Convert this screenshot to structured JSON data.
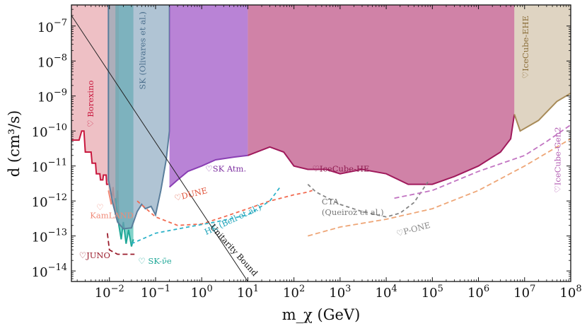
{
  "chart_data": {
    "type": "area",
    "xscale": "log",
    "yscale": "log",
    "xlim": [
      0.0015,
      100000000
    ],
    "ylim": [
      5e-15,
      4e-07
    ],
    "xlabel": "m_χ (GeV)",
    "ylabel": "d (cm³/s)",
    "xticks": [
      {
        "value": 0.01,
        "base": "10",
        "exp": "−2"
      },
      {
        "value": 0.1,
        "base": "10",
        "exp": "−1"
      },
      {
        "value": 1,
        "base": "10",
        "exp": "0"
      },
      {
        "value": 10,
        "base": "10",
        "exp": "1"
      },
      {
        "value": 100,
        "base": "10",
        "exp": "2"
      },
      {
        "value": 1000,
        "base": "10",
        "exp": "3"
      },
      {
        "value": 10000,
        "base": "10",
        "exp": "4"
      },
      {
        "value": 100000,
        "base": "10",
        "exp": "5"
      },
      {
        "value": 1000000,
        "base": "10",
        "exp": "6"
      },
      {
        "value": 10000000,
        "base": "10",
        "exp": "7"
      },
      {
        "value": 100000000,
        "base": "10",
        "exp": "8"
      }
    ],
    "yticks": [
      {
        "value": 1e-14,
        "base": "10",
        "exp": "−14"
      },
      {
        "value": 1e-13,
        "base": "10",
        "exp": "−13"
      },
      {
        "value": 1e-12,
        "base": "10",
        "exp": "−12"
      },
      {
        "value": 1e-11,
        "base": "10",
        "exp": "−11"
      },
      {
        "value": 1e-10,
        "base": "10",
        "exp": "−10"
      },
      {
        "value": 1e-09,
        "base": "10",
        "exp": "−9"
      },
      {
        "value": 1e-08,
        "base": "10",
        "exp": "−8"
      },
      {
        "value": 1e-07,
        "base": "10",
        "exp": "−7"
      }
    ],
    "regions": [
      {
        "name": "Borexino",
        "color": "#d9737f",
        "opacity": 0.45,
        "edge": "#c8183e",
        "boundary": [
          [
            0.0015,
            5.5e-11
          ],
          [
            0.0022,
            5.5e-11
          ],
          [
            0.0025,
            1e-10
          ],
          [
            0.0028,
            1e-10
          ],
          [
            0.003,
            2.5e-11
          ],
          [
            0.004,
            2.5e-11
          ],
          [
            0.0042,
            1.2e-11
          ],
          [
            0.005,
            1.2e-11
          ],
          [
            0.0052,
            6e-12
          ],
          [
            0.0062,
            6e-12
          ],
          [
            0.0064,
            4e-12
          ],
          [
            0.0072,
            4e-12
          ],
          [
            0.0074,
            5.5e-12
          ],
          [
            0.0085,
            5.5e-12
          ],
          [
            0.0087,
            3e-12
          ],
          [
            0.0095,
            3e-12
          ]
        ]
      },
      {
        "name": "KamLAND",
        "color": "#f4a394",
        "opacity": 0.6,
        "edge": "#f08a78",
        "boundary": [
          [
            0.0095,
            2e-12
          ],
          [
            0.011,
            8e-13
          ],
          [
            0.012,
            2.5e-12
          ],
          [
            0.0135,
            4e-13
          ],
          [
            0.015,
            2e-12
          ],
          [
            0.016,
            3e-13
          ]
        ]
      },
      {
        "name": "SK-ν̄e",
        "color": "#2cb5a5",
        "opacity": 0.6,
        "edge": "#20a898",
        "boundary": [
          [
            0.0135,
            1.2e-12
          ],
          [
            0.016,
            2e-13
          ],
          [
            0.018,
            8e-14
          ],
          [
            0.02,
            2.5e-13
          ],
          [
            0.023,
            6e-14
          ],
          [
            0.026,
            1.5e-13
          ],
          [
            0.03,
            5e-14
          ],
          [
            0.033,
            8e-14
          ]
        ]
      },
      {
        "name": "SK (Olivares et al.)",
        "color": "#7b9cb8",
        "opacity": 0.6,
        "edge": "#5a7e9c",
        "boundary": [
          [
            0.0095,
            4e-07
          ],
          [
            0.0095,
            4e-12
          ],
          [
            0.012,
            8e-13
          ],
          [
            0.015,
            2.5e-13
          ],
          [
            0.02,
            1.6e-13
          ],
          [
            0.03,
            1.7e-13
          ],
          [
            0.04,
            5e-13
          ],
          [
            0.05,
            8e-13
          ],
          [
            0.06,
            6e-13
          ],
          [
            0.08,
            7e-13
          ],
          [
            0.1,
            4e-13
          ],
          [
            0.13,
            2e-12
          ],
          [
            0.17,
            1.5e-11
          ],
          [
            0.2,
            1e-10
          ],
          [
            0.2,
            4e-07
          ]
        ]
      },
      {
        "name": "SK Atm.",
        "color": "#9b4fc4",
        "opacity": 0.7,
        "edge": "#8a3fb4",
        "boundary": [
          [
            0.2,
            2.5e-12
          ],
          [
            0.3,
            4e-12
          ],
          [
            0.5,
            7e-12
          ],
          [
            1,
            1e-11
          ],
          [
            2,
            1.5e-11
          ],
          [
            5,
            1.8e-11
          ],
          [
            10,
            2e-11
          ]
        ]
      },
      {
        "name": "IceCube-HE",
        "color": "#b02e6c",
        "opacity": 0.6,
        "edge": "#a01a5c",
        "boundary": [
          [
            10,
            2e-11
          ],
          [
            30,
            3.5e-11
          ],
          [
            60,
            2.5e-11
          ],
          [
            100,
            1e-11
          ],
          [
            200,
            8e-12
          ],
          [
            500,
            8e-12
          ],
          [
            1000,
            6e-12
          ],
          [
            3000,
            8e-12
          ],
          [
            10000,
            6e-12
          ],
          [
            30000,
            3e-12
          ],
          [
            100000,
            3e-12
          ],
          [
            300000,
            5e-12
          ],
          [
            1000000,
            1e-11
          ],
          [
            3000000,
            2.5e-11
          ],
          [
            5000000,
            6e-11
          ],
          [
            6000000,
            3e-10
          ]
        ]
      },
      {
        "name": "IceCube-EHE",
        "color": "#c9b79a",
        "opacity": 0.6,
        "edge": "#a88b58",
        "boundary": [
          [
            6000000,
            3e-10
          ],
          [
            8000000,
            1e-10
          ],
          [
            20000000,
            2e-10
          ],
          [
            50000000,
            7e-10
          ],
          [
            100000000,
            1.2e-09
          ]
        ]
      }
    ],
    "projections": [
      {
        "name": "JUNO",
        "color": "#9a1c2c",
        "dash": [
          7,
          4
        ],
        "points": [
          [
            0.009,
            1.2e-13
          ],
          [
            0.01,
            4e-14
          ],
          [
            0.015,
            3e-14
          ],
          [
            0.035,
            3e-14
          ]
        ]
      },
      {
        "name": "DUNE",
        "color": "#f16a50",
        "dash": [
          5,
          4
        ],
        "points": [
          [
            0.04,
            1e-12
          ],
          [
            0.1,
            3.5e-13
          ],
          [
            0.3,
            2e-13
          ],
          [
            1,
            2.2e-13
          ],
          [
            3,
            3.5e-13
          ],
          [
            10,
            6e-13
          ],
          [
            30,
            1e-12
          ],
          [
            100,
            1.5e-12
          ],
          [
            200,
            1.8e-12
          ],
          [
            250,
            2e-12
          ]
        ]
      },
      {
        "name": "HK (Bell et al.)",
        "color": "#2fb3c9",
        "dash": [
          5,
          4
        ],
        "points": [
          [
            0.03,
            6e-14
          ],
          [
            0.1,
            1.2e-13
          ],
          [
            0.5,
            1.8e-13
          ],
          [
            2,
            2.5e-13
          ],
          [
            10,
            4e-13
          ],
          [
            30,
            1e-12
          ],
          [
            50,
            2.5e-12
          ]
        ]
      },
      {
        "name": "CTA (Queiroz et al.)",
        "color": "#858585",
        "dash": [
          5,
          4
        ],
        "points": [
          [
            200,
            3e-12
          ],
          [
            300,
            1.8e-12
          ],
          [
            1000,
            8e-13
          ],
          [
            3000,
            5e-13
          ],
          [
            10000,
            3.5e-13
          ],
          [
            20000,
            4.5e-13
          ],
          [
            40000,
            9e-13
          ],
          [
            60000,
            2e-12
          ],
          [
            80000,
            3.5e-12
          ]
        ]
      },
      {
        "name": "IceCube-Gen2",
        "color": "#c274c2",
        "dash": [
          7,
          4
        ],
        "points": [
          [
            15000,
            1.2e-12
          ],
          [
            100000,
            2e-12
          ],
          [
            1000000,
            7e-12
          ],
          [
            10000000,
            2e-11
          ],
          [
            30000000,
            5e-11
          ],
          [
            100000000,
            1.5e-10
          ]
        ]
      },
      {
        "name": "P-ONE",
        "color": "#eea677",
        "dash": [
          7,
          4
        ],
        "points": [
          [
            200,
            1e-13
          ],
          [
            1000,
            1.8e-13
          ],
          [
            10000,
            3e-13
          ],
          [
            100000,
            6e-13
          ],
          [
            1000000,
            2e-12
          ],
          [
            10000000,
            1e-11
          ],
          [
            100000000,
            6e-11
          ]
        ]
      }
    ],
    "unitarity": {
      "name": "Unitarity Bound",
      "color": "#222222",
      "points": [
        [
          0.0015,
          2e-07
        ],
        [
          10,
          5e-15
        ]
      ]
    },
    "labels": [
      {
        "key": "borexino",
        "text": "♡ Borexino",
        "x": 0.0045,
        "y": 6e-10,
        "rotate": -90,
        "color": "#c8183e"
      },
      {
        "key": "sk_olivares",
        "text": "SK (Olivares et al.)",
        "x": 0.06,
        "y": 2e-08,
        "rotate": -90,
        "color": "#4a6e8c"
      },
      {
        "key": "sk_atm",
        "text": "♡SK Atm.",
        "x": 1.2,
        "y": 7e-12,
        "rotate": 0,
        "color": "#7d2fa0"
      },
      {
        "key": "icecube_he",
        "text": "♡IceCube-HE",
        "x": 250,
        "y": 7e-12,
        "rotate": 0,
        "color": "#8e1a4f"
      },
      {
        "key": "icecube_ehe",
        "text": "♡IceCube-EHE",
        "x": 12000000,
        "y": 2.5e-08,
        "rotate": -90,
        "color": "#8a6d37"
      },
      {
        "key": "dune",
        "text": "♡DUNE",
        "x": 0.6,
        "y": 1.3e-12,
        "rotate": -14,
        "color": "#e0533a"
      },
      {
        "key": "hk",
        "text": "HK (Bell et al.)",
        "x": 5,
        "y": 2.5e-13,
        "rotate": -25,
        "color": "#1ea3b9"
      },
      {
        "key": "cta_1",
        "text": "CTA",
        "x": 400,
        "y": 8e-13,
        "rotate": 0,
        "color": "#777777"
      },
      {
        "key": "cta_2",
        "text": "(Queiroz et al.)",
        "x": 400,
        "y": 4e-13,
        "rotate": 0,
        "color": "#777777"
      },
      {
        "key": "pone",
        "text": "♡P-ONE",
        "x": 40000,
        "y": 1.3e-13,
        "rotate": -15,
        "color": "#888888"
      },
      {
        "key": "gen2",
        "text": "♡IceCube-Gen2",
        "x": 60000000,
        "y": 1.5e-11,
        "rotate": -90,
        "color": "#b058b0"
      },
      {
        "key": "kamland_heart",
        "text": "♡",
        "x": 0.0052,
        "y": 5.5e-13,
        "rotate": 0,
        "color": "#f08a78"
      },
      {
        "key": "kamland",
        "text": "KamLAND",
        "x": 0.0038,
        "y": 3.2e-13,
        "rotate": 0,
        "color": "#f08a78"
      },
      {
        "key": "juno",
        "text": "♡JUNO",
        "x": 0.0022,
        "y": 2.3e-14,
        "rotate": 0,
        "color": "#9a1c2c"
      },
      {
        "key": "skbar",
        "text": "♡ SK-ν̄e",
        "x": 0.042,
        "y": 1.6e-14,
        "rotate": 0,
        "color": "#20a898"
      },
      {
        "key": "unitarity",
        "text": "Unitarity Bound",
        "x": 4.5,
        "y": 3.5e-14,
        "rotate": 48,
        "color": "#111111"
      }
    ]
  }
}
